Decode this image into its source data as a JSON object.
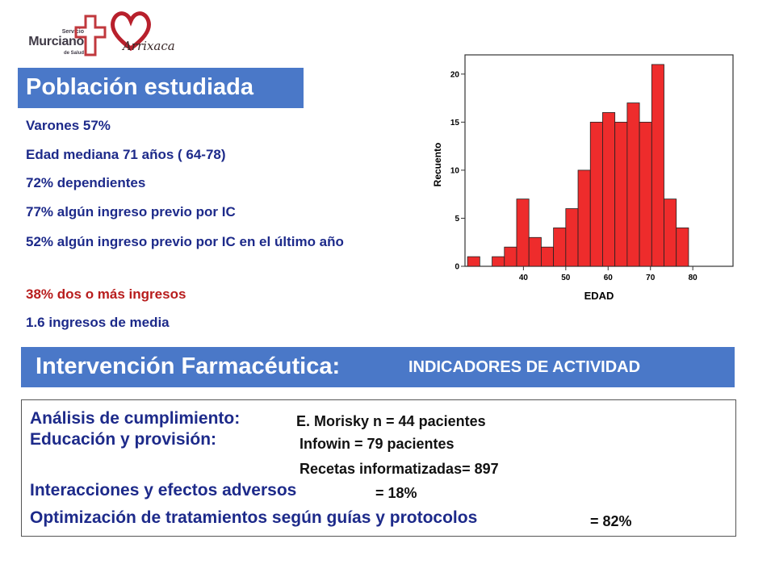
{
  "logos": {
    "servicio_line1": "Servicio",
    "servicio_line2": "Murciano",
    "servicio_line3": "de Salud",
    "arrixaca_text": "Arrixaca"
  },
  "title": "Población estudiada",
  "stats": [
    "Varones 57%",
    "Edad mediana 71 años ( 64-78)",
    "72% dependientes",
    "77% algún ingreso previo por IC",
    "52% algún ingreso previo por IC en el último año",
    "38% dos o más ingresos",
    "1.6 ingresos de media"
  ],
  "colors": {
    "title_bg": "#4a78c8",
    "stat_text": "#1d2a8a",
    "highlight": "#b81d1d",
    "bar_fill": "#ee2c2c"
  },
  "chart_data": {
    "type": "bar",
    "title": "",
    "xlabel": "EDAD",
    "ylabel": "Recuento",
    "bin_width": 2.9,
    "bins_start": 26.8,
    "values": [
      1,
      0,
      1,
      2,
      7,
      3,
      2,
      4,
      6,
      10,
      15,
      16,
      15,
      17,
      15,
      21,
      7,
      4
    ],
    "xticks": [
      40,
      50,
      60,
      70,
      80
    ],
    "yticks": [
      0,
      5,
      10,
      15,
      20
    ],
    "xlim": [
      26.2,
      89.5
    ],
    "ylim": [
      0,
      22
    ]
  },
  "banner": {
    "main": "Intervención Farmacéutica:",
    "sub": "INDICADORES DE ACTIVIDAD"
  },
  "activity": {
    "line1_label": "Análisis de cumplimiento:",
    "line1_value": "E. Morisky  n = 44 pacientes",
    "line2_label": "Educación y provisión:",
    "line2_value": "Infowin = 79 pacientes",
    "line3_value": "Recetas informatizadas= 897",
    "line4_label": "Interacciones y efectos adversos",
    "line4_value": "= 18%",
    "line5_label": "Optimización de tratamientos según guías y protocolos",
    "line5_value": "= 82%"
  }
}
